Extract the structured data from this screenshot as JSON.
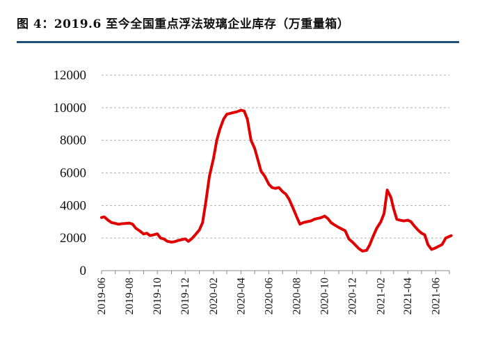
{
  "figure": {
    "title": "图 4：2019.6 至今全国重点浮法玻璃企业库存（万重量箱）"
  },
  "colors": {
    "line": "#e00000",
    "title_rule": "#1f4e79",
    "grid": "#b0b0b0",
    "axis": "#888888"
  },
  "chart_data": {
    "type": "line",
    "title": "",
    "xlabel": "",
    "ylabel": "",
    "ylim": [
      0,
      12000
    ],
    "yticks": [
      0,
      2000,
      4000,
      6000,
      8000,
      10000,
      12000
    ],
    "xlim": [
      "2019-06",
      "2021-07"
    ],
    "xticks": [
      "2019-06",
      "2019-08",
      "2019-10",
      "2019-12",
      "2020-02",
      "2020-04",
      "2020-06",
      "2020-08",
      "2020-10",
      "2020-12",
      "2021-02",
      "2021-04",
      "2021-06"
    ],
    "grid": true,
    "legend": "none",
    "series": [
      {
        "name": "",
        "points": [
          [
            "2019-06-01",
            3260
          ],
          [
            "2019-06-07",
            3300
          ],
          [
            "2019-06-15",
            3100
          ],
          [
            "2019-06-23",
            2950
          ],
          [
            "2019-07-01",
            2900
          ],
          [
            "2019-07-08",
            2850
          ],
          [
            "2019-07-15",
            2880
          ],
          [
            "2019-07-24",
            2900
          ],
          [
            "2019-08-01",
            2920
          ],
          [
            "2019-08-08",
            2850
          ],
          [
            "2019-08-15",
            2600
          ],
          [
            "2019-08-23",
            2450
          ],
          [
            "2019-09-01",
            2250
          ],
          [
            "2019-09-08",
            2300
          ],
          [
            "2019-09-15",
            2150
          ],
          [
            "2019-09-23",
            2200
          ],
          [
            "2019-10-01",
            2260
          ],
          [
            "2019-10-08",
            2000
          ],
          [
            "2019-10-15",
            1950
          ],
          [
            "2019-10-23",
            1800
          ],
          [
            "2019-11-01",
            1750
          ],
          [
            "2019-11-08",
            1780
          ],
          [
            "2019-11-15",
            1850
          ],
          [
            "2019-11-23",
            1900
          ],
          [
            "2019-12-01",
            1950
          ],
          [
            "2019-12-08",
            1800
          ],
          [
            "2019-12-15",
            1950
          ],
          [
            "2019-12-23",
            2200
          ],
          [
            "2020-01-01",
            2500
          ],
          [
            "2020-01-08",
            2950
          ],
          [
            "2020-01-15",
            4200
          ],
          [
            "2020-01-23",
            5800
          ],
          [
            "2020-02-01",
            6900
          ],
          [
            "2020-02-08",
            8000
          ],
          [
            "2020-02-15",
            8700
          ],
          [
            "2020-02-23",
            9300
          ],
          [
            "2020-03-01",
            9600
          ],
          [
            "2020-03-08",
            9650
          ],
          [
            "2020-03-15",
            9700
          ],
          [
            "2020-03-23",
            9750
          ],
          [
            "2020-04-01",
            9850
          ],
          [
            "2020-04-08",
            9800
          ],
          [
            "2020-04-15",
            9300
          ],
          [
            "2020-04-23",
            8000
          ],
          [
            "2020-05-01",
            7500
          ],
          [
            "2020-05-08",
            6800
          ],
          [
            "2020-05-15",
            6100
          ],
          [
            "2020-05-23",
            5800
          ],
          [
            "2020-06-01",
            5300
          ],
          [
            "2020-06-08",
            5100
          ],
          [
            "2020-06-15",
            5050
          ],
          [
            "2020-06-23",
            5100
          ],
          [
            "2020-07-01",
            4850
          ],
          [
            "2020-07-08",
            4700
          ],
          [
            "2020-07-15",
            4400
          ],
          [
            "2020-07-23",
            3900
          ],
          [
            "2020-08-01",
            3300
          ],
          [
            "2020-08-08",
            2850
          ],
          [
            "2020-08-15",
            2950
          ],
          [
            "2020-08-23",
            3000
          ],
          [
            "2020-09-01",
            3050
          ],
          [
            "2020-09-08",
            3150
          ],
          [
            "2020-09-15",
            3200
          ],
          [
            "2020-09-23",
            3250
          ],
          [
            "2020-10-01",
            3350
          ],
          [
            "2020-10-08",
            3200
          ],
          [
            "2020-10-15",
            2950
          ],
          [
            "2020-10-23",
            2800
          ],
          [
            "2020-11-01",
            2650
          ],
          [
            "2020-11-08",
            2550
          ],
          [
            "2020-11-15",
            2450
          ],
          [
            "2020-11-23",
            1950
          ],
          [
            "2020-12-01",
            1750
          ],
          [
            "2020-12-08",
            1550
          ],
          [
            "2020-12-15",
            1350
          ],
          [
            "2020-12-23",
            1200
          ],
          [
            "2021-01-01",
            1250
          ],
          [
            "2021-01-08",
            1600
          ],
          [
            "2021-01-15",
            2100
          ],
          [
            "2021-01-23",
            2600
          ],
          [
            "2021-02-01",
            3000
          ],
          [
            "2021-02-08",
            3500
          ],
          [
            "2021-02-15",
            4950
          ],
          [
            "2021-02-23",
            4500
          ],
          [
            "2021-03-01",
            3800
          ],
          [
            "2021-03-08",
            3150
          ],
          [
            "2021-03-15",
            3100
          ],
          [
            "2021-03-23",
            3050
          ],
          [
            "2021-04-01",
            3100
          ],
          [
            "2021-04-08",
            3000
          ],
          [
            "2021-04-15",
            2750
          ],
          [
            "2021-04-23",
            2500
          ],
          [
            "2021-05-01",
            2300
          ],
          [
            "2021-05-08",
            2200
          ],
          [
            "2021-05-15",
            1600
          ],
          [
            "2021-05-23",
            1300
          ],
          [
            "2021-06-01",
            1400
          ],
          [
            "2021-06-08",
            1500
          ],
          [
            "2021-06-15",
            1600
          ],
          [
            "2021-06-23",
            2000
          ],
          [
            "2021-07-01",
            2100
          ],
          [
            "2021-07-05",
            2150
          ]
        ]
      }
    ]
  }
}
